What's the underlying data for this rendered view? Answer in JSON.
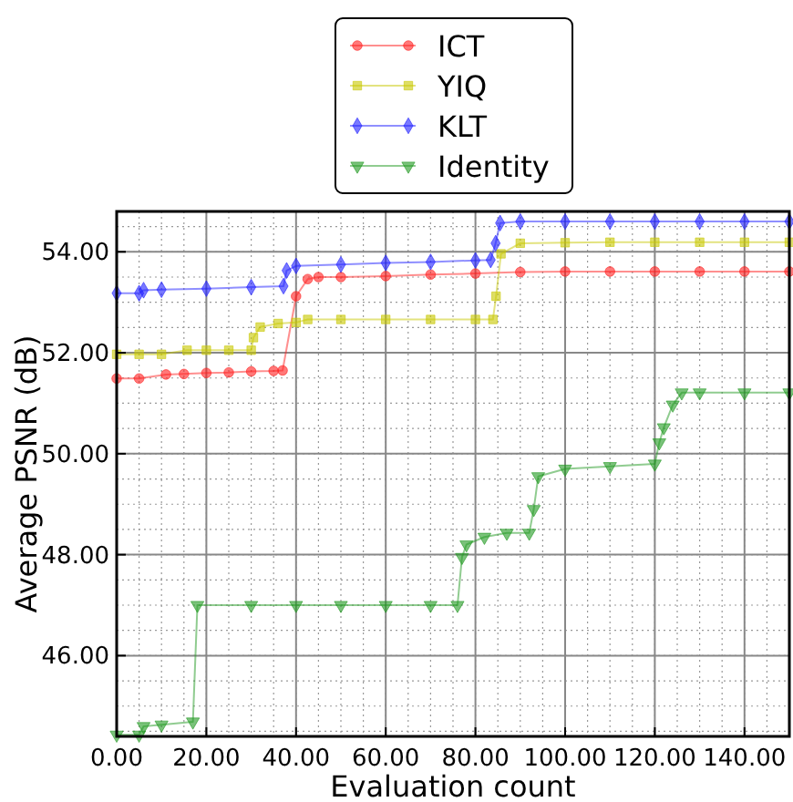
{
  "chart_data": {
    "type": "line",
    "xlabel": "Evaluation count",
    "ylabel": "Average PSNR (dB)",
    "xlim": [
      0,
      150
    ],
    "ylim": [
      44.4,
      54.8
    ],
    "xticks": [
      {
        "value": 0,
        "label": "0.00"
      },
      {
        "value": 20,
        "label": "20.00"
      },
      {
        "value": 40,
        "label": "40.00"
      },
      {
        "value": 60,
        "label": "60.00"
      },
      {
        "value": 80,
        "label": "80.00"
      },
      {
        "value": 100,
        "label": "100.00"
      },
      {
        "value": 120,
        "label": "120.00"
      },
      {
        "value": 140,
        "label": "140.00"
      }
    ],
    "yticks": [
      {
        "value": 46,
        "label": "46.00"
      },
      {
        "value": 48,
        "label": "48.00"
      },
      {
        "value": 50,
        "label": "50.00"
      },
      {
        "value": 52,
        "label": "52.00"
      },
      {
        "value": 54,
        "label": "54.00"
      }
    ],
    "grid": true,
    "legend": "top",
    "line_style": "solid",
    "series": [
      {
        "name": "ICT",
        "color": "#ff2020",
        "marker": "circle",
        "x": [
          0,
          5,
          11,
          15,
          20,
          25,
          30,
          35,
          37,
          40,
          42.6,
          45,
          50,
          60,
          70,
          80,
          90,
          100,
          110,
          120,
          130,
          140,
          150
        ],
        "values": [
          51.49,
          51.49,
          51.57,
          51.58,
          51.6,
          51.61,
          51.63,
          51.64,
          51.65,
          53.12,
          53.46,
          53.5,
          53.5,
          53.52,
          53.55,
          53.57,
          53.6,
          53.61,
          53.61,
          53.61,
          53.61,
          53.61,
          53.61
        ]
      },
      {
        "name": "YIQ",
        "color": "#c8c800",
        "marker": "square",
        "x": [
          0,
          5,
          10,
          15.7,
          20,
          25,
          30,
          30.5,
          32,
          36,
          40,
          42.6,
          50,
          60,
          70,
          80,
          83.9,
          84.6,
          85.7,
          90,
          100,
          110,
          120,
          130,
          140,
          150
        ],
        "values": [
          51.97,
          51.97,
          51.97,
          52.05,
          52.05,
          52.05,
          52.05,
          52.3,
          52.51,
          52.58,
          52.6,
          52.66,
          52.66,
          52.66,
          52.66,
          52.66,
          52.66,
          53.12,
          53.96,
          54.17,
          54.18,
          54.19,
          54.19,
          54.19,
          54.19,
          54.19
        ]
      },
      {
        "name": "KLT",
        "color": "#2020ff",
        "marker": "diamond",
        "x": [
          0,
          5,
          6,
          10,
          20,
          30,
          37.2,
          37.9,
          40,
          50,
          60,
          70,
          80,
          83.4,
          84.5,
          85.5,
          90,
          100,
          110,
          120,
          130,
          140,
          150
        ],
        "values": [
          53.18,
          53.18,
          53.24,
          53.25,
          53.27,
          53.3,
          53.32,
          53.63,
          53.72,
          53.75,
          53.78,
          53.8,
          53.83,
          53.84,
          54.17,
          54.57,
          54.6,
          54.6,
          54.6,
          54.6,
          54.6,
          54.6,
          54.6
        ]
      },
      {
        "name": "Identity",
        "color": "#229922",
        "marker": "triangle",
        "x": [
          0,
          5,
          6,
          10,
          17,
          18,
          30,
          40,
          50,
          60,
          70,
          76,
          77,
          78,
          82,
          87,
          92,
          93,
          94,
          100,
          110,
          120,
          121,
          122,
          124,
          126,
          130,
          140,
          150
        ],
        "values": [
          44.43,
          44.43,
          44.6,
          44.63,
          44.69,
          47.0,
          47.0,
          47.0,
          47.0,
          47.0,
          47.0,
          47.0,
          47.95,
          48.2,
          48.35,
          48.43,
          48.43,
          48.9,
          49.55,
          49.7,
          49.75,
          49.8,
          50.22,
          50.52,
          50.97,
          51.21,
          51.21,
          51.21,
          51.21
        ]
      }
    ]
  }
}
